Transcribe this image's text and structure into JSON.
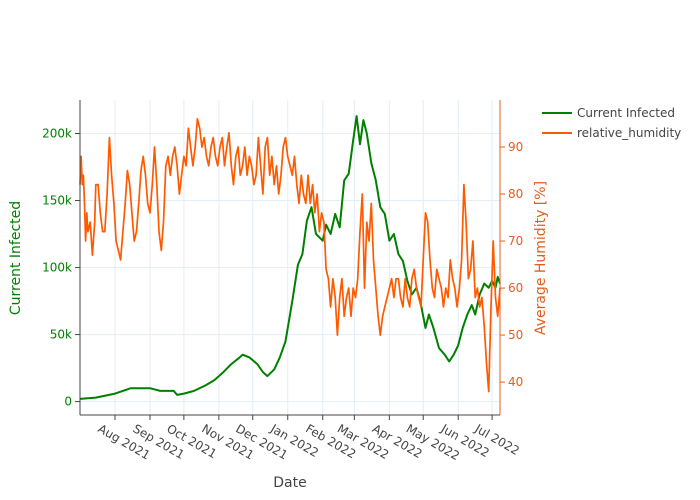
{
  "chart_data": {
    "type": "line",
    "xlabel": "Date",
    "ylabel_left": "Current Infected",
    "ylabel_right": "Average Humidity [%]",
    "x_range": [
      "2021-07-01",
      "2022-07-08"
    ],
    "ylim_left": [
      -10000,
      225000
    ],
    "ylim_right": [
      33,
      100
    ],
    "x_ticks": [
      {
        "date": "2021-08-01",
        "label": "Aug 2021"
      },
      {
        "date": "2021-09-01",
        "label": "Sep 2021"
      },
      {
        "date": "2021-10-01",
        "label": "Oct 2021"
      },
      {
        "date": "2021-11-01",
        "label": "Nov 2021"
      },
      {
        "date": "2021-12-01",
        "label": "Dec 2021"
      },
      {
        "date": "2022-01-01",
        "label": "Jan 2022"
      },
      {
        "date": "2022-02-01",
        "label": "Feb 2022"
      },
      {
        "date": "2022-03-01",
        "label": "Mar 2022"
      },
      {
        "date": "2022-04-01",
        "label": "Apr 2022"
      },
      {
        "date": "2022-05-01",
        "label": "May 2022"
      },
      {
        "date": "2022-06-01",
        "label": "Jun 2022"
      },
      {
        "date": "2022-07-01",
        "label": "Jul 2022"
      }
    ],
    "y_ticks_left": [
      {
        "value": 0,
        "label": "0"
      },
      {
        "value": 50000,
        "label": "50k"
      },
      {
        "value": 100000,
        "label": "100k"
      },
      {
        "value": 150000,
        "label": "150k"
      },
      {
        "value": 200000,
        "label": "200k"
      }
    ],
    "y_ticks_right": [
      {
        "value": 40,
        "label": "40"
      },
      {
        "value": 50,
        "label": "50"
      },
      {
        "value": 60,
        "label": "60"
      },
      {
        "value": 70,
        "label": "70"
      },
      {
        "value": 80,
        "label": "80"
      },
      {
        "value": 90,
        "label": "90"
      }
    ],
    "legend_position": "top-right, outside plot",
    "grid": true,
    "series": [
      {
        "name": "Current Infected",
        "color": "#008000",
        "axis": "left",
        "points": [
          [
            "2021-07-01",
            2000
          ],
          [
            "2021-07-15",
            3000
          ],
          [
            "2021-08-01",
            6000
          ],
          [
            "2021-08-15",
            10000
          ],
          [
            "2021-09-01",
            10000
          ],
          [
            "2021-09-10",
            8000
          ],
          [
            "2021-09-22",
            8000
          ],
          [
            "2021-09-25",
            5000
          ],
          [
            "2021-10-01",
            6000
          ],
          [
            "2021-10-10",
            8000
          ],
          [
            "2021-10-20",
            12000
          ],
          [
            "2021-10-28",
            16000
          ],
          [
            "2021-11-05",
            22000
          ],
          [
            "2021-11-12",
            28000
          ],
          [
            "2021-11-18",
            32000
          ],
          [
            "2021-11-22",
            35000
          ],
          [
            "2021-11-28",
            33000
          ],
          [
            "2021-12-05",
            28000
          ],
          [
            "2021-12-10",
            22000
          ],
          [
            "2021-12-14",
            19000
          ],
          [
            "2021-12-20",
            24000
          ],
          [
            "2021-12-25",
            33000
          ],
          [
            "2021-12-30",
            45000
          ],
          [
            "2022-01-05",
            75000
          ],
          [
            "2022-01-10",
            102000
          ],
          [
            "2022-01-14",
            110000
          ],
          [
            "2022-01-18",
            135000
          ],
          [
            "2022-01-22",
            145000
          ],
          [
            "2022-01-26",
            125000
          ],
          [
            "2022-02-01",
            120000
          ],
          [
            "2022-02-04",
            132000
          ],
          [
            "2022-02-08",
            125000
          ],
          [
            "2022-02-12",
            140000
          ],
          [
            "2022-02-16",
            130000
          ],
          [
            "2022-02-20",
            165000
          ],
          [
            "2022-02-24",
            170000
          ],
          [
            "2022-02-28",
            195000
          ],
          [
            "2022-03-03",
            213000
          ],
          [
            "2022-03-06",
            192000
          ],
          [
            "2022-03-09",
            210000
          ],
          [
            "2022-03-12",
            200000
          ],
          [
            "2022-03-16",
            178000
          ],
          [
            "2022-03-20",
            165000
          ],
          [
            "2022-03-24",
            145000
          ],
          [
            "2022-03-28",
            140000
          ],
          [
            "2022-04-01",
            120000
          ],
          [
            "2022-04-05",
            125000
          ],
          [
            "2022-04-09",
            110000
          ],
          [
            "2022-04-13",
            105000
          ],
          [
            "2022-04-17",
            90000
          ],
          [
            "2022-04-21",
            80000
          ],
          [
            "2022-04-25",
            85000
          ],
          [
            "2022-04-29",
            72000
          ],
          [
            "2022-05-03",
            55000
          ],
          [
            "2022-05-06",
            65000
          ],
          [
            "2022-05-10",
            55000
          ],
          [
            "2022-05-15",
            40000
          ],
          [
            "2022-05-20",
            35000
          ],
          [
            "2022-05-24",
            30000
          ],
          [
            "2022-05-28",
            35000
          ],
          [
            "2022-06-01",
            42000
          ],
          [
            "2022-06-05",
            55000
          ],
          [
            "2022-06-09",
            65000
          ],
          [
            "2022-06-13",
            72000
          ],
          [
            "2022-06-16",
            65000
          ],
          [
            "2022-06-20",
            80000
          ],
          [
            "2022-06-24",
            88000
          ],
          [
            "2022-06-28",
            85000
          ],
          [
            "2022-07-01",
            90000
          ],
          [
            "2022-07-04",
            85000
          ],
          [
            "2022-07-06",
            93000
          ],
          [
            "2022-07-08",
            88000
          ]
        ]
      },
      {
        "name": "relative_humidity",
        "color": "#ff5a00",
        "axis": "right",
        "points": [
          [
            "2021-07-01",
            82
          ],
          [
            "2021-07-02",
            88
          ],
          [
            "2021-07-03",
            82
          ],
          [
            "2021-07-04",
            84
          ],
          [
            "2021-07-05",
            78
          ],
          [
            "2021-07-06",
            70
          ],
          [
            "2021-07-07",
            76
          ],
          [
            "2021-07-08",
            72
          ],
          [
            "2021-07-10",
            74
          ],
          [
            "2021-07-12",
            67
          ],
          [
            "2021-07-14",
            74
          ],
          [
            "2021-07-15",
            82
          ],
          [
            "2021-07-17",
            82
          ],
          [
            "2021-07-19",
            76
          ],
          [
            "2021-07-21",
            72
          ],
          [
            "2021-07-23",
            72
          ],
          [
            "2021-07-25",
            80
          ],
          [
            "2021-07-27",
            92
          ],
          [
            "2021-07-29",
            84
          ],
          [
            "2021-07-31",
            78
          ],
          [
            "2021-08-02",
            70
          ],
          [
            "2021-08-04",
            68
          ],
          [
            "2021-08-06",
            66
          ],
          [
            "2021-08-08",
            72
          ],
          [
            "2021-08-10",
            78
          ],
          [
            "2021-08-12",
            85
          ],
          [
            "2021-08-14",
            82
          ],
          [
            "2021-08-16",
            76
          ],
          [
            "2021-08-18",
            70
          ],
          [
            "2021-08-20",
            72
          ],
          [
            "2021-08-22",
            78
          ],
          [
            "2021-08-24",
            85
          ],
          [
            "2021-08-26",
            88
          ],
          [
            "2021-08-28",
            84
          ],
          [
            "2021-08-30",
            78
          ],
          [
            "2021-09-01",
            76
          ],
          [
            "2021-09-03",
            82
          ],
          [
            "2021-09-05",
            90
          ],
          [
            "2021-09-07",
            82
          ],
          [
            "2021-09-09",
            72
          ],
          [
            "2021-09-11",
            68
          ],
          [
            "2021-09-13",
            74
          ],
          [
            "2021-09-15",
            86
          ],
          [
            "2021-09-17",
            88
          ],
          [
            "2021-09-19",
            84
          ],
          [
            "2021-09-21",
            88
          ],
          [
            "2021-09-23",
            90
          ],
          [
            "2021-09-25",
            86
          ],
          [
            "2021-09-27",
            80
          ],
          [
            "2021-09-29",
            84
          ],
          [
            "2021-10-01",
            88
          ],
          [
            "2021-10-03",
            86
          ],
          [
            "2021-10-05",
            94
          ],
          [
            "2021-10-07",
            90
          ],
          [
            "2021-10-09",
            86
          ],
          [
            "2021-10-11",
            90
          ],
          [
            "2021-10-13",
            96
          ],
          [
            "2021-10-15",
            94
          ],
          [
            "2021-10-17",
            90
          ],
          [
            "2021-10-19",
            92
          ],
          [
            "2021-10-21",
            88
          ],
          [
            "2021-10-23",
            86
          ],
          [
            "2021-10-25",
            90
          ],
          [
            "2021-10-27",
            92
          ],
          [
            "2021-10-29",
            88
          ],
          [
            "2021-10-31",
            86
          ],
          [
            "2021-11-02",
            90
          ],
          [
            "2021-11-04",
            92
          ],
          [
            "2021-11-06",
            86
          ],
          [
            "2021-11-08",
            90
          ],
          [
            "2021-11-10",
            93
          ],
          [
            "2021-11-12",
            86
          ],
          [
            "2021-11-14",
            82
          ],
          [
            "2021-11-16",
            88
          ],
          [
            "2021-11-18",
            90
          ],
          [
            "2021-11-20",
            84
          ],
          [
            "2021-11-22",
            86
          ],
          [
            "2021-11-24",
            90
          ],
          [
            "2021-11-26",
            84
          ],
          [
            "2021-11-28",
            88
          ],
          [
            "2021-11-30",
            86
          ],
          [
            "2021-12-02",
            82
          ],
          [
            "2021-12-04",
            84
          ],
          [
            "2021-12-06",
            92
          ],
          [
            "2021-12-08",
            86
          ],
          [
            "2021-12-10",
            80
          ],
          [
            "2021-12-12",
            90
          ],
          [
            "2021-12-14",
            92
          ],
          [
            "2021-12-16",
            84
          ],
          [
            "2021-12-18",
            88
          ],
          [
            "2021-12-20",
            82
          ],
          [
            "2021-12-22",
            86
          ],
          [
            "2021-12-24",
            80
          ],
          [
            "2021-12-26",
            84
          ],
          [
            "2021-12-28",
            90
          ],
          [
            "2021-12-30",
            92
          ],
          [
            "2022-01-01",
            88
          ],
          [
            "2022-01-03",
            86
          ],
          [
            "2022-01-05",
            84
          ],
          [
            "2022-01-07",
            88
          ],
          [
            "2022-01-09",
            82
          ],
          [
            "2022-01-11",
            78
          ],
          [
            "2022-01-13",
            84
          ],
          [
            "2022-01-15",
            80
          ],
          [
            "2022-01-17",
            78
          ],
          [
            "2022-01-19",
            84
          ],
          [
            "2022-01-21",
            78
          ],
          [
            "2022-01-23",
            82
          ],
          [
            "2022-01-25",
            76
          ],
          [
            "2022-01-27",
            80
          ],
          [
            "2022-01-29",
            72
          ],
          [
            "2022-01-31",
            76
          ],
          [
            "2022-02-02",
            74
          ],
          [
            "2022-02-04",
            64
          ],
          [
            "2022-02-06",
            62
          ],
          [
            "2022-02-08",
            56
          ],
          [
            "2022-02-10",
            62
          ],
          [
            "2022-02-12",
            58
          ],
          [
            "2022-02-14",
            50
          ],
          [
            "2022-02-16",
            58
          ],
          [
            "2022-02-18",
            62
          ],
          [
            "2022-02-20",
            54
          ],
          [
            "2022-02-22",
            58
          ],
          [
            "2022-02-24",
            60
          ],
          [
            "2022-02-26",
            54
          ],
          [
            "2022-02-28",
            60
          ],
          [
            "2022-03-02",
            58
          ],
          [
            "2022-03-04",
            62
          ],
          [
            "2022-03-06",
            72
          ],
          [
            "2022-03-08",
            80
          ],
          [
            "2022-03-10",
            60
          ],
          [
            "2022-03-12",
            74
          ],
          [
            "2022-03-14",
            70
          ],
          [
            "2022-03-16",
            78
          ],
          [
            "2022-03-18",
            66
          ],
          [
            "2022-03-20",
            60
          ],
          [
            "2022-03-22",
            54
          ],
          [
            "2022-03-24",
            50
          ],
          [
            "2022-03-26",
            54
          ],
          [
            "2022-03-28",
            56
          ],
          [
            "2022-03-30",
            58
          ],
          [
            "2022-04-01",
            60
          ],
          [
            "2022-04-03",
            62
          ],
          [
            "2022-04-05",
            58
          ],
          [
            "2022-04-07",
            62
          ],
          [
            "2022-04-09",
            62
          ],
          [
            "2022-04-11",
            58
          ],
          [
            "2022-04-13",
            56
          ],
          [
            "2022-04-15",
            62
          ],
          [
            "2022-04-17",
            58
          ],
          [
            "2022-04-19",
            56
          ],
          [
            "2022-04-21",
            62
          ],
          [
            "2022-04-23",
            64
          ],
          [
            "2022-04-25",
            60
          ],
          [
            "2022-04-27",
            58
          ],
          [
            "2022-04-29",
            56
          ],
          [
            "2022-05-01",
            66
          ],
          [
            "2022-05-03",
            76
          ],
          [
            "2022-05-05",
            74
          ],
          [
            "2022-05-07",
            66
          ],
          [
            "2022-05-09",
            60
          ],
          [
            "2022-05-11",
            58
          ],
          [
            "2022-05-13",
            64
          ],
          [
            "2022-05-15",
            62
          ],
          [
            "2022-05-17",
            60
          ],
          [
            "2022-05-19",
            56
          ],
          [
            "2022-05-21",
            60
          ],
          [
            "2022-05-23",
            58
          ],
          [
            "2022-05-25",
            66
          ],
          [
            "2022-05-27",
            62
          ],
          [
            "2022-05-29",
            60
          ],
          [
            "2022-05-31",
            56
          ],
          [
            "2022-06-02",
            60
          ],
          [
            "2022-06-04",
            66
          ],
          [
            "2022-06-06",
            82
          ],
          [
            "2022-06-08",
            74
          ],
          [
            "2022-06-10",
            62
          ],
          [
            "2022-06-12",
            64
          ],
          [
            "2022-06-14",
            70
          ],
          [
            "2022-06-16",
            58
          ],
          [
            "2022-06-18",
            60
          ],
          [
            "2022-06-20",
            56
          ],
          [
            "2022-06-22",
            58
          ],
          [
            "2022-06-24",
            52
          ],
          [
            "2022-06-26",
            44
          ],
          [
            "2022-06-28",
            38
          ],
          [
            "2022-06-30",
            56
          ],
          [
            "2022-07-02",
            70
          ],
          [
            "2022-07-04",
            58
          ],
          [
            "2022-07-06",
            54
          ],
          [
            "2022-07-08",
            60
          ]
        ]
      }
    ]
  }
}
